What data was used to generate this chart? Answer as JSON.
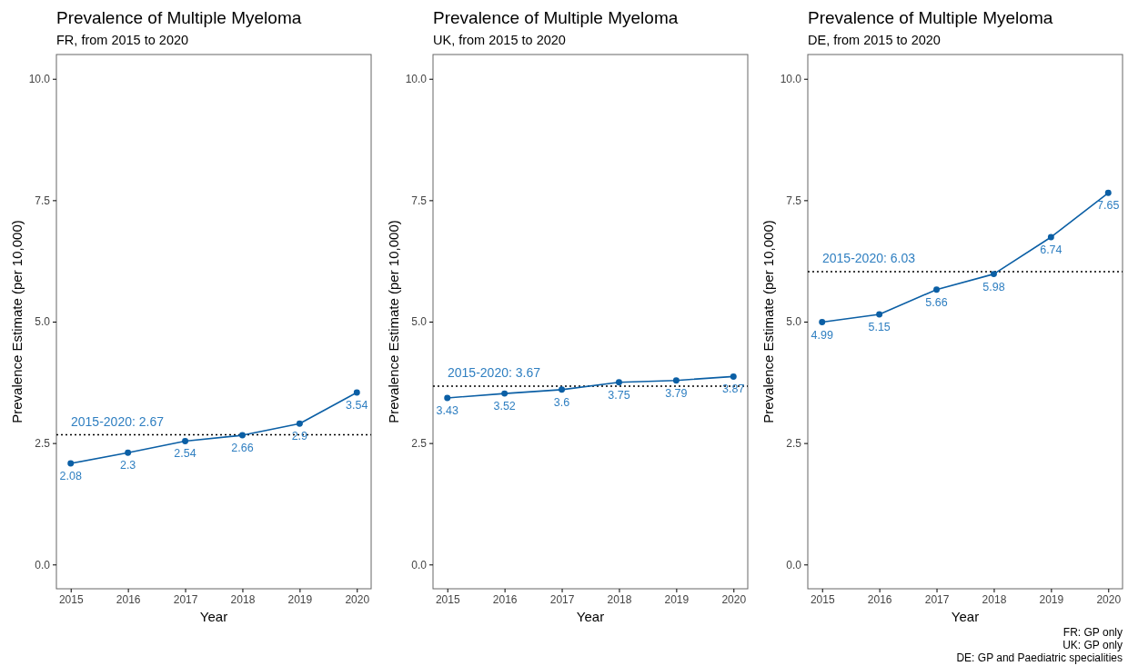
{
  "chart_data": [
    {
      "type": "line",
      "title": "Prevalence of Multiple Myeloma",
      "subtitle": "FR, from 2015 to 2020",
      "xlabel": "Year",
      "ylabel": "Prevalence Estimate (per 10,000)",
      "x": [
        2015,
        2016,
        2017,
        2018,
        2019,
        2020
      ],
      "series": [
        {
          "color": "#0b5fa5",
          "values": [
            2.08,
            2.3,
            2.54,
            2.66,
            2.9,
            3.54
          ]
        }
      ],
      "xlim": [
        2014.75,
        2020.25
      ],
      "xticks": [
        2015,
        2016,
        2017,
        2018,
        2019,
        2020
      ],
      "ylim": [
        -0.5,
        10.5
      ],
      "yticks": [
        {
          "value": 0,
          "label": "0.0"
        },
        {
          "value": 2.5,
          "label": "2.5"
        },
        {
          "value": 5,
          "label": "5.0"
        },
        {
          "value": 7.5,
          "label": "7.5"
        },
        {
          "value": 10,
          "label": "10.0"
        }
      ],
      "ref_lines": [
        {
          "axis": "y",
          "value": 2.67,
          "label": "2015-2020: 2.67",
          "color": "#000000",
          "line_style": "dotted"
        }
      ],
      "grid": false,
      "marker": "circle",
      "line_style": "solid",
      "data_labels": true
    },
    {
      "type": "line",
      "title": "Prevalence of Multiple Myeloma",
      "subtitle": "UK, from 2015 to 2020",
      "xlabel": "Year",
      "ylabel": "Prevalence Estimate (per 10,000)",
      "x": [
        2015,
        2016,
        2017,
        2018,
        2019,
        2020
      ],
      "series": [
        {
          "color": "#0b5fa5",
          "values": [
            3.43,
            3.52,
            3.6,
            3.75,
            3.79,
            3.87
          ]
        }
      ],
      "xlim": [
        2014.75,
        2020.25
      ],
      "xticks": [
        2015,
        2016,
        2017,
        2018,
        2019,
        2020
      ],
      "ylim": [
        -0.5,
        10.5
      ],
      "yticks": [
        {
          "value": 0,
          "label": "0.0"
        },
        {
          "value": 2.5,
          "label": "2.5"
        },
        {
          "value": 5,
          "label": "5.0"
        },
        {
          "value": 7.5,
          "label": "7.5"
        },
        {
          "value": 10,
          "label": "10.0"
        }
      ],
      "ref_lines": [
        {
          "axis": "y",
          "value": 3.67,
          "label": "2015-2020: 3.67",
          "color": "#000000",
          "line_style": "dotted"
        }
      ],
      "grid": false,
      "marker": "circle",
      "line_style": "solid",
      "data_labels": true
    },
    {
      "type": "line",
      "title": "Prevalence of Multiple Myeloma",
      "subtitle": "DE, from 2015 to 2020",
      "xlabel": "Year",
      "ylabel": "Prevalence Estimate (per 10,000)",
      "x": [
        2015,
        2016,
        2017,
        2018,
        2019,
        2020
      ],
      "series": [
        {
          "color": "#0b5fa5",
          "values": [
            4.99,
            5.15,
            5.66,
            5.98,
            6.74,
            7.65
          ]
        }
      ],
      "xlim": [
        2014.75,
        2020.25
      ],
      "xticks": [
        2015,
        2016,
        2017,
        2018,
        2019,
        2020
      ],
      "ylim": [
        -0.5,
        10.5
      ],
      "yticks": [
        {
          "value": 0,
          "label": "0.0"
        },
        {
          "value": 2.5,
          "label": "2.5"
        },
        {
          "value": 5,
          "label": "5.0"
        },
        {
          "value": 7.5,
          "label": "7.5"
        },
        {
          "value": 10,
          "label": "10.0"
        }
      ],
      "ref_lines": [
        {
          "axis": "y",
          "value": 6.03,
          "label": "2015-2020: 6.03",
          "color": "#000000",
          "line_style": "dotted"
        }
      ],
      "annotations": [
        "FR: GP only",
        "UK: GP only",
        "DE: GP and Paediatric specialities"
      ],
      "grid": false,
      "marker": "circle",
      "line_style": "solid",
      "data_labels": true
    }
  ]
}
